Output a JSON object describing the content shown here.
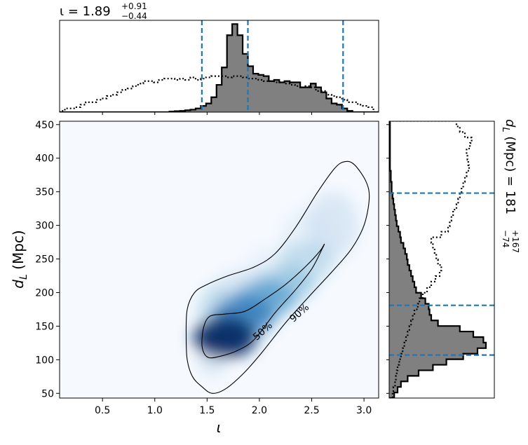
{
  "chart_data": {
    "type": "corner",
    "main": {
      "type": "heatmap",
      "colormap": "Blues",
      "xlabel": "ι",
      "ylabel": "d_L (Mpc)",
      "xlim": [
        0.09,
        3.14
      ],
      "ylim": [
        43,
        455
      ],
      "xticks": [
        "0.5",
        "1.0",
        "1.5",
        "2.0",
        "2.5",
        "3.0"
      ],
      "yticks": [
        "50",
        "100",
        "150",
        "200",
        "250",
        "300",
        "350",
        "400",
        "450"
      ],
      "density_peak": {
        "x": 1.67,
        "y": 133
      },
      "contours": [
        {
          "label": "50%",
          "label_at": [
            2.03,
            143
          ],
          "points": [
            [
              1.47,
              110
            ],
            [
              1.45,
              125
            ],
            [
              1.47,
              150
            ],
            [
              1.53,
              165
            ],
            [
              1.67,
              168
            ],
            [
              1.86,
              172
            ],
            [
              2.05,
              190
            ],
            [
              2.25,
              212
            ],
            [
              2.45,
              240
            ],
            [
              2.58,
              262
            ],
            [
              2.62,
              272
            ],
            [
              2.6,
              265
            ],
            [
              2.5,
              235
            ],
            [
              2.35,
              205
            ],
            [
              2.15,
              170
            ],
            [
              1.95,
              130
            ],
            [
              1.78,
              113
            ],
            [
              1.62,
              105
            ],
            [
              1.52,
              103
            ]
          ]
        },
        {
          "label": "90%",
          "label_at": [
            2.38,
            170
          ],
          "points": [
            [
              1.45,
              60
            ],
            [
              1.36,
              75
            ],
            [
              1.31,
              100
            ],
            [
              1.3,
              135
            ],
            [
              1.31,
              175
            ],
            [
              1.38,
              200
            ],
            [
              1.5,
              212
            ],
            [
              1.7,
              225
            ],
            [
              1.95,
              238
            ],
            [
              2.15,
              258
            ],
            [
              2.35,
              298
            ],
            [
              2.55,
              348
            ],
            [
              2.72,
              385
            ],
            [
              2.82,
              395
            ],
            [
              2.91,
              390
            ],
            [
              3.02,
              365
            ],
            [
              3.05,
              340
            ],
            [
              3.0,
              300
            ],
            [
              2.88,
              265
            ],
            [
              2.7,
              232
            ],
            [
              2.48,
              195
            ],
            [
              2.25,
              155
            ],
            [
              2.02,
              110
            ],
            [
              1.85,
              80
            ],
            [
              1.68,
              57
            ],
            [
              1.55,
              50
            ]
          ]
        }
      ]
    },
    "top": {
      "type": "histogram",
      "title": "ι = 1.89",
      "title_sup": "+0.91",
      "title_sub": "−0.44",
      "bin_edges": {
        "start": 0.09,
        "width": 0.05
      },
      "posterior": [
        0,
        0,
        0,
        0,
        0,
        0,
        0,
        0,
        0,
        0,
        0,
        0,
        0,
        0,
        0,
        0,
        0,
        0,
        0,
        0,
        0,
        0.5,
        0.8,
        1,
        1.5,
        2,
        3,
        5,
        7,
        12,
        22,
        36,
        62,
        71,
        62,
        47,
        37,
        31,
        30,
        29,
        25,
        26,
        24,
        25,
        24,
        24,
        20,
        20,
        23,
        20,
        16,
        11,
        7,
        6,
        3,
        1,
        0,
        0,
        0,
        0,
        0
      ],
      "prior": [
        1,
        3,
        3,
        4,
        6,
        8,
        8,
        10,
        11,
        13,
        14,
        16,
        18,
        19,
        21,
        23,
        25,
        25,
        24,
        26,
        27,
        27,
        26,
        27,
        26,
        28,
        26,
        27,
        28,
        29,
        29,
        29,
        28,
        29,
        29,
        28,
        27,
        27,
        26,
        25,
        25,
        24,
        24,
        23,
        22,
        21,
        20,
        21,
        20,
        17,
        17,
        14,
        13,
        12,
        10,
        8,
        8,
        6,
        5,
        4,
        0
      ],
      "lines": [
        1.45,
        1.89,
        2.8
      ]
    },
    "right": {
      "type": "histogram",
      "title": "d_L (Mpc) = 181",
      "title_sup": "+167",
      "title_sub": "−74",
      "bin_edges": {
        "start": 43,
        "width": 8.25
      },
      "posterior": [
        6,
        10,
        14,
        22,
        35,
        52,
        68,
        88,
        105,
        115,
        112,
        100,
        84,
        58,
        50,
        48,
        47,
        43,
        38,
        32,
        30,
        28,
        26,
        24,
        22,
        21,
        19,
        17,
        14,
        13,
        11,
        9,
        8,
        7,
        6,
        5,
        4,
        3,
        3,
        2,
        2,
        1,
        1,
        1,
        1,
        1,
        1,
        1,
        1,
        1
      ],
      "prior": [
        4,
        5,
        7,
        8,
        9,
        10,
        12,
        14,
        16,
        18,
        20,
        22,
        24,
        26,
        28,
        30,
        34,
        36,
        40,
        45,
        50,
        55,
        60,
        62,
        58,
        56,
        54,
        52,
        50,
        62,
        70,
        72,
        74,
        76,
        80,
        82,
        84,
        86,
        88,
        90,
        92,
        95,
        94,
        93,
        92,
        96,
        98,
        90,
        84,
        80
      ],
      "lines": [
        107,
        181,
        348
      ]
    }
  }
}
